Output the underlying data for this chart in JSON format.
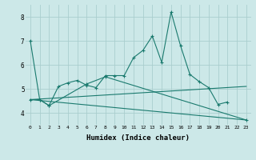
{
  "line1_x": [
    0,
    1,
    2,
    3,
    4,
    5,
    6,
    7,
    8,
    9,
    10,
    11,
    12,
    13,
    14,
    15,
    16,
    17,
    18,
    19,
    20,
    21
  ],
  "line1_y": [
    7.0,
    4.55,
    4.3,
    5.1,
    5.25,
    5.35,
    5.15,
    5.05,
    5.55,
    5.55,
    5.55,
    6.3,
    6.6,
    7.2,
    6.1,
    8.2,
    6.8,
    5.6,
    5.3,
    5.05,
    4.35,
    4.45
  ],
  "line2_x": [
    0,
    1,
    2,
    6,
    8,
    23
  ],
  "line2_y": [
    4.55,
    4.55,
    4.3,
    5.2,
    5.5,
    3.7
  ],
  "trend1_x": [
    0,
    23
  ],
  "trend1_y": [
    4.55,
    5.1
  ],
  "trend2_x": [
    0,
    23
  ],
  "trend2_y": [
    4.55,
    3.7
  ],
  "color": "#1a7a6e",
  "bg_color": "#cce8e8",
  "grid_color": "#aacece",
  "xlabel": "Humidex (Indice chaleur)",
  "ylim": [
    3.5,
    8.5
  ],
  "xlim": [
    -0.5,
    23.5
  ],
  "yticks": [
    4,
    5,
    6,
    7,
    8
  ],
  "xticks": [
    0,
    1,
    2,
    3,
    4,
    5,
    6,
    7,
    8,
    9,
    10,
    11,
    12,
    13,
    14,
    15,
    16,
    17,
    18,
    19,
    20,
    21,
    22,
    23
  ]
}
